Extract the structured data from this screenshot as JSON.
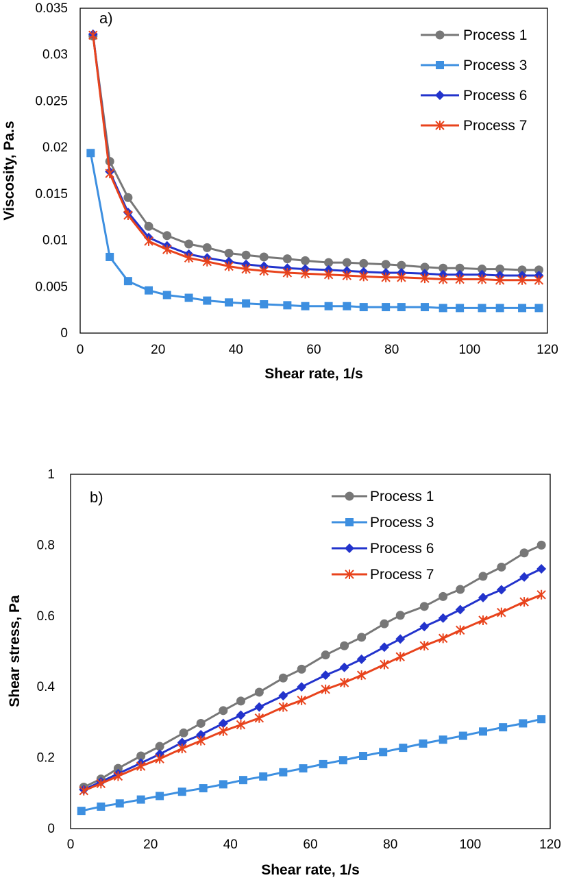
{
  "chart_data": [
    {
      "type": "line",
      "panel_label": "a)",
      "xlabel": "Shear rate, 1/s",
      "ylabel": "Viscosity, Pa.s",
      "xlim": [
        0,
        120
      ],
      "ylim": [
        0,
        0.035
      ],
      "x_ticks": [
        "0",
        "20",
        "40",
        "60",
        "80",
        "100",
        "120"
      ],
      "y_ticks": [
        "0",
        "0.005",
        "0.01",
        "0.015",
        "0.02",
        "0.025",
        "0.03",
        "0.035"
      ],
      "grid": false,
      "legend_position": "top-right",
      "series": [
        {
          "name": "Process 1",
          "color": "#777777",
          "marker": "circle",
          "x": [
            3.3,
            7.6,
            12.3,
            17.6,
            22.3,
            27.9,
            32.6,
            38.2,
            42.6,
            47.2,
            53.2,
            57.8,
            63.8,
            68.5,
            72.8,
            78.5,
            82.5,
            88.5,
            93.2,
            97.5,
            103.2,
            107.8,
            113.5,
            117.8
          ],
          "y": [
            0.032,
            0.0185,
            0.0146,
            0.0115,
            0.0105,
            0.0096,
            0.0092,
            0.0086,
            0.0084,
            0.0082,
            0.008,
            0.0078,
            0.0076,
            0.0076,
            0.0075,
            0.0074,
            0.0073,
            0.0071,
            0.007,
            0.007,
            0.0069,
            0.0069,
            0.0068,
            0.0068
          ]
        },
        {
          "name": "Process 3",
          "color": "#3d8fe0",
          "marker": "square",
          "x": [
            2.7,
            7.6,
            12.3,
            17.6,
            22.3,
            27.9,
            32.6,
            38.2,
            42.6,
            47.2,
            53.2,
            57.8,
            63.8,
            68.5,
            72.8,
            78.5,
            82.5,
            88.5,
            93.2,
            97.5,
            103.2,
            107.8,
            113.5,
            117.8
          ],
          "y": [
            0.0194,
            0.0082,
            0.0056,
            0.0046,
            0.0041,
            0.0038,
            0.0035,
            0.0033,
            0.0032,
            0.0031,
            0.003,
            0.0029,
            0.0029,
            0.0029,
            0.0028,
            0.0028,
            0.0028,
            0.0028,
            0.0027,
            0.0027,
            0.0027,
            0.0027,
            0.0027,
            0.0027
          ]
        },
        {
          "name": "Process 6",
          "color": "#2233cc",
          "marker": "diamond",
          "x": [
            3.3,
            7.6,
            12.3,
            17.6,
            22.3,
            27.9,
            32.6,
            38.2,
            42.6,
            47.2,
            53.2,
            57.8,
            63.8,
            68.5,
            72.8,
            78.5,
            82.5,
            88.5,
            93.2,
            97.5,
            103.2,
            107.8,
            113.5,
            117.8
          ],
          "y": [
            0.0322,
            0.0174,
            0.013,
            0.0103,
            0.0094,
            0.0085,
            0.0081,
            0.0077,
            0.0074,
            0.0072,
            0.007,
            0.0069,
            0.0068,
            0.0067,
            0.0066,
            0.0065,
            0.0065,
            0.0064,
            0.0063,
            0.0063,
            0.0063,
            0.0062,
            0.0062,
            0.0062
          ]
        },
        {
          "name": "Process 7",
          "color": "#e8431c",
          "marker": "star",
          "x": [
            3.3,
            7.6,
            12.3,
            17.6,
            22.3,
            27.9,
            32.6,
            38.2,
            42.6,
            47.2,
            53.2,
            57.8,
            63.8,
            68.5,
            72.8,
            78.5,
            82.5,
            88.5,
            93.2,
            97.5,
            103.2,
            107.8,
            113.5,
            117.8
          ],
          "y": [
            0.0321,
            0.0172,
            0.0127,
            0.0099,
            0.009,
            0.0081,
            0.0077,
            0.0072,
            0.0069,
            0.0067,
            0.0065,
            0.0064,
            0.0063,
            0.0062,
            0.0061,
            0.006,
            0.006,
            0.0059,
            0.0058,
            0.0058,
            0.0058,
            0.0057,
            0.0057,
            0.0057
          ]
        }
      ]
    },
    {
      "type": "line",
      "panel_label": "b)",
      "xlabel": "Shear rate, 1/s",
      "ylabel": "Shear stress, Pa",
      "xlim": [
        0,
        120
      ],
      "ylim": [
        0,
        1
      ],
      "x_ticks": [
        "0",
        "20",
        "40",
        "60",
        "80",
        "100",
        "120"
      ],
      "y_ticks": [
        "0",
        "0.2",
        "0.4",
        "0.6",
        "0.8",
        "1"
      ],
      "grid": false,
      "legend_position": "top-right",
      "series": [
        {
          "name": "Process 1",
          "color": "#777777",
          "marker": "circle",
          "x": [
            3.3,
            7.6,
            11.9,
            17.6,
            22.3,
            28.3,
            32.6,
            38.2,
            42.6,
            47.2,
            53.2,
            57.8,
            63.8,
            68.5,
            72.8,
            78.5,
            82.5,
            88.5,
            93.2,
            97.5,
            103.2,
            107.8,
            113.5,
            117.8
          ],
          "y": [
            0.117,
            0.14,
            0.17,
            0.205,
            0.232,
            0.27,
            0.297,
            0.333,
            0.36,
            0.385,
            0.425,
            0.45,
            0.49,
            0.516,
            0.54,
            0.578,
            0.602,
            0.627,
            0.655,
            0.675,
            0.712,
            0.738,
            0.778,
            0.8
          ]
        },
        {
          "name": "Process 3",
          "color": "#3d8fe0",
          "marker": "square",
          "x": [
            2.7,
            7.6,
            12.3,
            17.6,
            22.3,
            27.9,
            33.2,
            38.2,
            43.2,
            48.2,
            53.2,
            58.2,
            63.2,
            68.2,
            73.2,
            78.2,
            83.2,
            88.2,
            93.2,
            98.2,
            103.2,
            108.2,
            113.2,
            117.8
          ],
          "y": [
            0.05,
            0.062,
            0.071,
            0.082,
            0.092,
            0.104,
            0.114,
            0.125,
            0.137,
            0.147,
            0.159,
            0.17,
            0.182,
            0.193,
            0.205,
            0.216,
            0.228,
            0.24,
            0.251,
            0.262,
            0.274,
            0.286,
            0.297,
            0.309
          ]
        },
        {
          "name": "Process 6",
          "color": "#2233cc",
          "marker": "diamond",
          "x": [
            3.3,
            7.6,
            11.9,
            17.6,
            22.3,
            27.9,
            32.6,
            38.2,
            42.6,
            47.2,
            53.2,
            57.8,
            63.8,
            68.5,
            72.8,
            78.5,
            82.5,
            88.5,
            93.2,
            97.5,
            103.2,
            107.8,
            113.5,
            117.8
          ],
          "y": [
            0.11,
            0.132,
            0.155,
            0.185,
            0.21,
            0.243,
            0.265,
            0.297,
            0.32,
            0.343,
            0.375,
            0.4,
            0.433,
            0.455,
            0.478,
            0.512,
            0.535,
            0.57,
            0.594,
            0.618,
            0.652,
            0.674,
            0.71,
            0.733
          ]
        },
        {
          "name": "Process 7",
          "color": "#e8431c",
          "marker": "star",
          "x": [
            3.3,
            7.6,
            11.9,
            17.6,
            22.3,
            27.9,
            32.6,
            38.2,
            42.6,
            47.2,
            53.2,
            57.8,
            63.8,
            68.5,
            72.8,
            78.5,
            82.5,
            88.5,
            93.2,
            97.5,
            103.2,
            107.8,
            113.5,
            117.8
          ],
          "y": [
            0.107,
            0.127,
            0.148,
            0.176,
            0.197,
            0.226,
            0.248,
            0.275,
            0.293,
            0.312,
            0.343,
            0.362,
            0.393,
            0.412,
            0.433,
            0.463,
            0.485,
            0.516,
            0.537,
            0.56,
            0.588,
            0.61,
            0.64,
            0.66
          ]
        }
      ]
    }
  ]
}
